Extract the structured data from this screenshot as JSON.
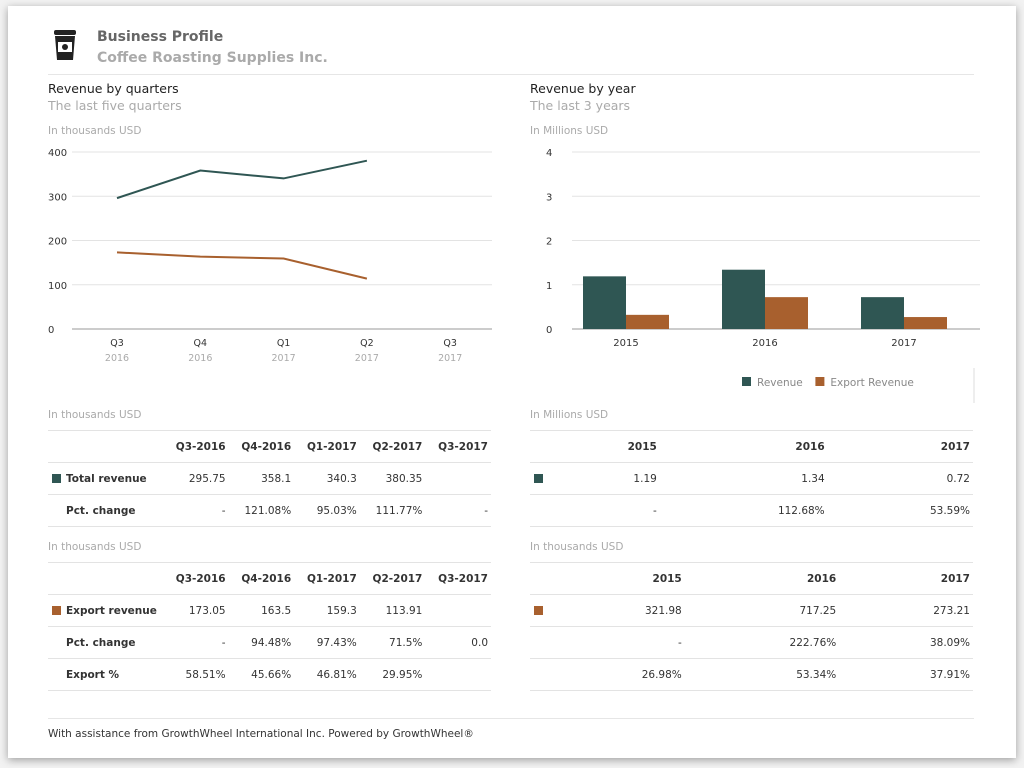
{
  "header": {
    "title": "Business Profile",
    "company": "Coffee Roasting Supplies Inc.",
    "icon": "coffee-cup-icon"
  },
  "colors": {
    "revenue": "#2f5653",
    "export": "#a8602e"
  },
  "left": {
    "title": "Revenue by quarters",
    "subtitle": "The last five quarters",
    "unit": "In thousands USD"
  },
  "right": {
    "title": "Revenue by year",
    "subtitle": "The last 3 years",
    "unit": "In Millions USD"
  },
  "chart_data": [
    {
      "type": "line",
      "ylabel": "In thousands USD",
      "ylim": [
        0,
        400
      ],
      "yticks": [
        0,
        100,
        200,
        300,
        400
      ],
      "grid": true,
      "categories": [
        [
          "Q3",
          "2016"
        ],
        [
          "Q4",
          "2016"
        ],
        [
          "Q1",
          "2017"
        ],
        [
          "Q2",
          "2017"
        ],
        [
          "Q3",
          "2017"
        ]
      ],
      "series": [
        {
          "values": [
            295.75,
            358.1,
            340.3,
            380.35,
            null
          ],
          "color": "#2f5653"
        },
        {
          "values": [
            173.05,
            163.5,
            159.3,
            113.91,
            null
          ],
          "color": "#a8602e"
        }
      ]
    },
    {
      "type": "bar",
      "ylabel": "In Millions USD",
      "ylim": [
        0,
        4
      ],
      "yticks": [
        0,
        1,
        2,
        3,
        4
      ],
      "grid": true,
      "legend": "bottom-right",
      "categories": [
        "2015",
        "2016",
        "2017"
      ],
      "series": [
        {
          "name": "Revenue",
          "values": [
            1.19,
            1.34,
            0.72
          ],
          "color": "#2f5653"
        },
        {
          "name": "Export Revenue",
          "values": [
            0.32,
            0.72,
            0.27
          ],
          "color": "#a8602e"
        }
      ]
    }
  ],
  "tables": {
    "t1": {
      "unit": "In thousands USD",
      "headers": [
        "Q3-2016",
        "Q4-2016",
        "Q1-2017",
        "Q2-2017",
        "Q3-2017"
      ],
      "rows": [
        {
          "label": "Total revenue",
          "cells": [
            "295.75",
            "358.1",
            "340.3",
            "380.35",
            ""
          ]
        },
        {
          "label": "Pct. change",
          "cells": [
            "-",
            "121.08%",
            "95.03%",
            "111.77%",
            "-"
          ]
        }
      ]
    },
    "t2": {
      "unit": "In thousands USD",
      "headers": [
        "Q3-2016",
        "Q4-2016",
        "Q1-2017",
        "Q2-2017",
        "Q3-2017"
      ],
      "rows": [
        {
          "label": "Export revenue",
          "cells": [
            "173.05",
            "163.5",
            "159.3",
            "113.91",
            ""
          ]
        },
        {
          "label": "Pct. change",
          "cells": [
            "-",
            "94.48%",
            "97.43%",
            "71.5%",
            "0.0"
          ]
        },
        {
          "label": "Export %",
          "cells": [
            "58.51%",
            "45.66%",
            "46.81%",
            "29.95%",
            ""
          ]
        }
      ]
    },
    "t3": {
      "unit": "In Millions USD",
      "headers": [
        "2015",
        "2016",
        "2017"
      ],
      "rows": [
        {
          "cells": [
            "1.19",
            "1.34",
            "0.72"
          ]
        },
        {
          "cells": [
            "-",
            "112.68%",
            "53.59%"
          ]
        }
      ]
    },
    "t4": {
      "unit": "In thousands USD",
      "headers": [
        "2015",
        "2016",
        "2017"
      ],
      "rows": [
        {
          "cells": [
            "321.98",
            "717.25",
            "273.21"
          ]
        },
        {
          "cells": [
            "-",
            "222.76%",
            "38.09%"
          ]
        },
        {
          "cells": [
            "26.98%",
            "53.34%",
            "37.91%"
          ]
        }
      ]
    }
  },
  "footer": "With assistance from GrowthWheel International Inc. Powered by GrowthWheel®"
}
